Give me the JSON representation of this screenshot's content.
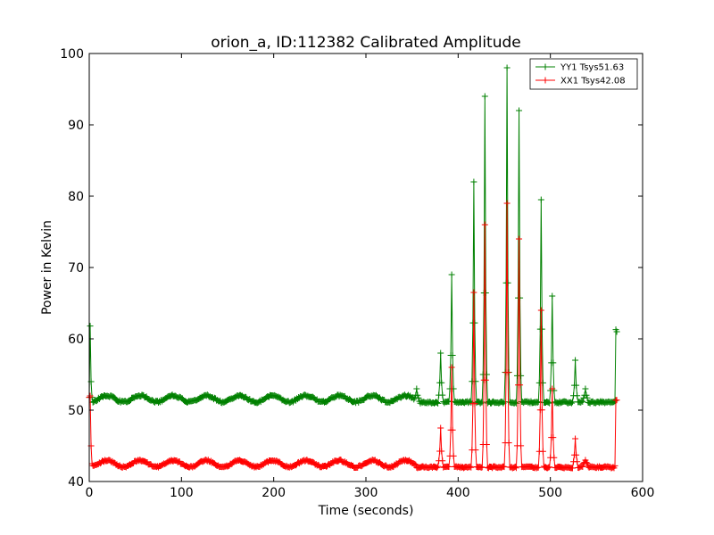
{
  "chart_data": {
    "type": "line",
    "title": "orion_a, ID:112382 Calibrated Amplitude",
    "xlabel": "Time (seconds)",
    "ylabel": "Power in Kelvin",
    "xlim": [
      0,
      600
    ],
    "ylim": [
      40,
      100
    ],
    "xticks": [
      "0",
      "100",
      "200",
      "300",
      "400",
      "500",
      "600"
    ],
    "yticks": [
      "40",
      "50",
      "60",
      "70",
      "80",
      "90",
      "100"
    ],
    "grid": false,
    "legend_position": "top-right",
    "marker": "plus",
    "series": [
      {
        "name": "YY1 Tsys51.63",
        "color": "#008000",
        "baseline": 51.6,
        "wave_amp": 0.45,
        "wave_period": 36,
        "noise": 0.3,
        "start": [
          [
            0,
            51.8
          ],
          [
            1,
            61.8
          ],
          [
            2,
            54
          ],
          [
            3,
            51.8
          ]
        ],
        "spikes": [
          [
            355,
            53
          ],
          [
            381,
            58
          ],
          [
            393,
            69
          ],
          [
            417,
            82
          ],
          [
            429,
            94
          ],
          [
            453,
            98
          ],
          [
            466,
            92
          ],
          [
            490,
            79.5
          ],
          [
            502,
            66
          ],
          [
            527,
            57
          ],
          [
            538,
            53
          ]
        ],
        "end": [
          [
            570,
            51.3
          ],
          [
            571,
            61.3
          ],
          [
            572,
            61.0
          ]
        ]
      },
      {
        "name": "XX1 Tsys42.08",
        "color": "#ff0000",
        "baseline": 42.5,
        "wave_amp": 0.45,
        "wave_period": 36,
        "noise": 0.25,
        "start": [
          [
            0,
            51.8
          ],
          [
            1,
            52.0
          ],
          [
            2,
            45
          ],
          [
            3,
            42.5
          ]
        ],
        "spikes": [
          [
            381,
            47.5
          ],
          [
            393,
            56
          ],
          [
            417,
            66.5
          ],
          [
            429,
            76
          ],
          [
            453,
            79
          ],
          [
            466,
            74
          ],
          [
            490,
            64
          ],
          [
            502,
            53
          ],
          [
            527,
            46
          ],
          [
            538,
            43
          ]
        ],
        "end": [
          [
            570,
            42.2
          ],
          [
            571,
            51.4
          ],
          [
            572,
            51.4
          ]
        ]
      }
    ]
  }
}
